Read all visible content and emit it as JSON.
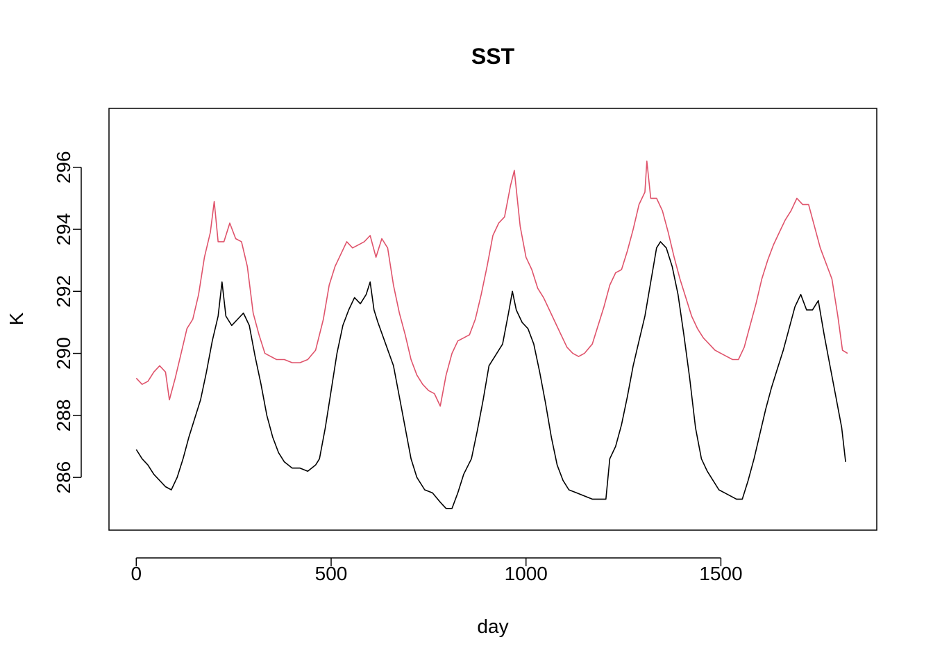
{
  "chart_data": {
    "type": "line",
    "title": "SST",
    "xlabel": "day",
    "ylabel": "K",
    "xlim": [
      -70,
      1900
    ],
    "ylim": [
      284.3,
      297.9
    ],
    "x_ticks": [
      0,
      500,
      1000,
      1500
    ],
    "y_ticks": [
      286,
      288,
      290,
      292,
      294,
      296
    ],
    "grid": false,
    "legend": "none",
    "series": [
      {
        "color": "#000000",
        "points": [
          [
            0,
            286.9
          ],
          [
            15,
            286.6
          ],
          [
            30,
            286.4
          ],
          [
            45,
            286.1
          ],
          [
            60,
            285.9
          ],
          [
            75,
            285.7
          ],
          [
            90,
            285.6
          ],
          [
            105,
            286.0
          ],
          [
            120,
            286.6
          ],
          [
            135,
            287.3
          ],
          [
            150,
            287.9
          ],
          [
            165,
            288.5
          ],
          [
            180,
            289.4
          ],
          [
            195,
            290.4
          ],
          [
            210,
            291.2
          ],
          [
            220,
            292.3
          ],
          [
            230,
            291.2
          ],
          [
            245,
            290.9
          ],
          [
            260,
            291.1
          ],
          [
            275,
            291.3
          ],
          [
            290,
            290.9
          ],
          [
            305,
            289.9
          ],
          [
            320,
            289.0
          ],
          [
            335,
            288.0
          ],
          [
            350,
            287.3
          ],
          [
            365,
            286.8
          ],
          [
            380,
            286.5
          ],
          [
            400,
            286.3
          ],
          [
            420,
            286.3
          ],
          [
            440,
            286.2
          ],
          [
            460,
            286.4
          ],
          [
            470,
            286.6
          ],
          [
            485,
            287.6
          ],
          [
            500,
            288.8
          ],
          [
            515,
            290.0
          ],
          [
            530,
            290.9
          ],
          [
            545,
            291.4
          ],
          [
            560,
            291.8
          ],
          [
            575,
            291.6
          ],
          [
            590,
            291.9
          ],
          [
            600,
            292.3
          ],
          [
            610,
            291.4
          ],
          [
            620,
            291.0
          ],
          [
            640,
            290.3
          ],
          [
            660,
            289.6
          ],
          [
            675,
            288.6
          ],
          [
            690,
            287.6
          ],
          [
            705,
            286.6
          ],
          [
            720,
            286.0
          ],
          [
            740,
            285.6
          ],
          [
            760,
            285.5
          ],
          [
            780,
            285.2
          ],
          [
            795,
            285.0
          ],
          [
            810,
            285.0
          ],
          [
            825,
            285.5
          ],
          [
            840,
            286.1
          ],
          [
            860,
            286.6
          ],
          [
            875,
            287.5
          ],
          [
            890,
            288.5
          ],
          [
            905,
            289.6
          ],
          [
            920,
            289.9
          ],
          [
            940,
            290.3
          ],
          [
            955,
            291.3
          ],
          [
            965,
            292.0
          ],
          [
            975,
            291.4
          ],
          [
            990,
            291.0
          ],
          [
            1005,
            290.8
          ],
          [
            1020,
            290.3
          ],
          [
            1035,
            289.4
          ],
          [
            1050,
            288.4
          ],
          [
            1065,
            287.3
          ],
          [
            1080,
            286.4
          ],
          [
            1095,
            285.9
          ],
          [
            1110,
            285.6
          ],
          [
            1130,
            285.5
          ],
          [
            1150,
            285.4
          ],
          [
            1170,
            285.3
          ],
          [
            1190,
            285.3
          ],
          [
            1205,
            285.3
          ],
          [
            1215,
            286.6
          ],
          [
            1230,
            287.0
          ],
          [
            1245,
            287.7
          ],
          [
            1260,
            288.6
          ],
          [
            1275,
            289.6
          ],
          [
            1290,
            290.4
          ],
          [
            1305,
            291.2
          ],
          [
            1320,
            292.3
          ],
          [
            1335,
            293.4
          ],
          [
            1345,
            293.6
          ],
          [
            1360,
            293.4
          ],
          [
            1375,
            292.8
          ],
          [
            1390,
            291.9
          ],
          [
            1405,
            290.6
          ],
          [
            1420,
            289.2
          ],
          [
            1435,
            287.6
          ],
          [
            1450,
            286.6
          ],
          [
            1465,
            286.2
          ],
          [
            1480,
            285.9
          ],
          [
            1495,
            285.6
          ],
          [
            1510,
            285.5
          ],
          [
            1525,
            285.4
          ],
          [
            1540,
            285.3
          ],
          [
            1555,
            285.3
          ],
          [
            1570,
            285.9
          ],
          [
            1585,
            286.6
          ],
          [
            1600,
            287.4
          ],
          [
            1615,
            288.2
          ],
          [
            1630,
            288.9
          ],
          [
            1645,
            289.5
          ],
          [
            1660,
            290.1
          ],
          [
            1675,
            290.8
          ],
          [
            1690,
            291.5
          ],
          [
            1705,
            291.9
          ],
          [
            1720,
            291.4
          ],
          [
            1735,
            291.4
          ],
          [
            1750,
            291.7
          ],
          [
            1765,
            290.6
          ],
          [
            1780,
            289.6
          ],
          [
            1795,
            288.6
          ],
          [
            1810,
            287.6
          ],
          [
            1820,
            286.5
          ]
        ]
      },
      {
        "color": "#DF536B",
        "points": [
          [
            0,
            289.2
          ],
          [
            15,
            289.0
          ],
          [
            30,
            289.1
          ],
          [
            45,
            289.4
          ],
          [
            60,
            289.6
          ],
          [
            75,
            289.4
          ],
          [
            85,
            288.5
          ],
          [
            100,
            289.2
          ],
          [
            115,
            290.0
          ],
          [
            130,
            290.8
          ],
          [
            145,
            291.1
          ],
          [
            160,
            291.9
          ],
          [
            175,
            293.1
          ],
          [
            190,
            293.9
          ],
          [
            200,
            294.9
          ],
          [
            210,
            293.6
          ],
          [
            225,
            293.6
          ],
          [
            240,
            294.2
          ],
          [
            255,
            293.7
          ],
          [
            270,
            293.6
          ],
          [
            285,
            292.8
          ],
          [
            300,
            291.3
          ],
          [
            315,
            290.6
          ],
          [
            330,
            290.0
          ],
          [
            345,
            289.9
          ],
          [
            360,
            289.8
          ],
          [
            380,
            289.8
          ],
          [
            400,
            289.7
          ],
          [
            420,
            289.7
          ],
          [
            440,
            289.8
          ],
          [
            460,
            290.1
          ],
          [
            480,
            291.1
          ],
          [
            495,
            292.2
          ],
          [
            510,
            292.8
          ],
          [
            525,
            293.2
          ],
          [
            540,
            293.6
          ],
          [
            555,
            293.4
          ],
          [
            570,
            293.5
          ],
          [
            585,
            293.6
          ],
          [
            600,
            293.8
          ],
          [
            615,
            293.1
          ],
          [
            630,
            293.7
          ],
          [
            645,
            293.4
          ],
          [
            660,
            292.2
          ],
          [
            675,
            291.3
          ],
          [
            690,
            290.6
          ],
          [
            705,
            289.8
          ],
          [
            720,
            289.3
          ],
          [
            735,
            289.0
          ],
          [
            750,
            288.8
          ],
          [
            765,
            288.7
          ],
          [
            780,
            288.3
          ],
          [
            795,
            289.3
          ],
          [
            810,
            290.0
          ],
          [
            825,
            290.4
          ],
          [
            840,
            290.5
          ],
          [
            855,
            290.6
          ],
          [
            870,
            291.1
          ],
          [
            885,
            291.9
          ],
          [
            900,
            292.8
          ],
          [
            915,
            293.8
          ],
          [
            930,
            294.2
          ],
          [
            945,
            294.4
          ],
          [
            960,
            295.4
          ],
          [
            970,
            295.9
          ],
          [
            985,
            294.1
          ],
          [
            1000,
            293.1
          ],
          [
            1015,
            292.7
          ],
          [
            1030,
            292.1
          ],
          [
            1045,
            291.8
          ],
          [
            1060,
            291.4
          ],
          [
            1075,
            291.0
          ],
          [
            1090,
            290.6
          ],
          [
            1105,
            290.2
          ],
          [
            1120,
            290.0
          ],
          [
            1135,
            289.9
          ],
          [
            1150,
            290.0
          ],
          [
            1170,
            290.3
          ],
          [
            1185,
            290.9
          ],
          [
            1200,
            291.5
          ],
          [
            1215,
            292.2
          ],
          [
            1230,
            292.6
          ],
          [
            1245,
            292.7
          ],
          [
            1260,
            293.3
          ],
          [
            1275,
            294.0
          ],
          [
            1290,
            294.8
          ],
          [
            1305,
            295.2
          ],
          [
            1310,
            296.2
          ],
          [
            1320,
            295.0
          ],
          [
            1335,
            295.0
          ],
          [
            1350,
            294.6
          ],
          [
            1365,
            293.9
          ],
          [
            1380,
            293.1
          ],
          [
            1395,
            292.4
          ],
          [
            1410,
            291.8
          ],
          [
            1425,
            291.2
          ],
          [
            1440,
            290.8
          ],
          [
            1455,
            290.5
          ],
          [
            1470,
            290.3
          ],
          [
            1485,
            290.1
          ],
          [
            1500,
            290.0
          ],
          [
            1515,
            289.9
          ],
          [
            1530,
            289.8
          ],
          [
            1545,
            289.8
          ],
          [
            1560,
            290.2
          ],
          [
            1575,
            290.9
          ],
          [
            1590,
            291.6
          ],
          [
            1605,
            292.4
          ],
          [
            1620,
            293.0
          ],
          [
            1635,
            293.5
          ],
          [
            1650,
            293.9
          ],
          [
            1665,
            294.3
          ],
          [
            1680,
            294.6
          ],
          [
            1695,
            295.0
          ],
          [
            1710,
            294.8
          ],
          [
            1725,
            294.8
          ],
          [
            1740,
            294.1
          ],
          [
            1755,
            293.4
          ],
          [
            1770,
            292.9
          ],
          [
            1785,
            292.4
          ],
          [
            1800,
            291.2
          ],
          [
            1812,
            290.1
          ],
          [
            1825,
            290.0
          ]
        ]
      }
    ]
  }
}
